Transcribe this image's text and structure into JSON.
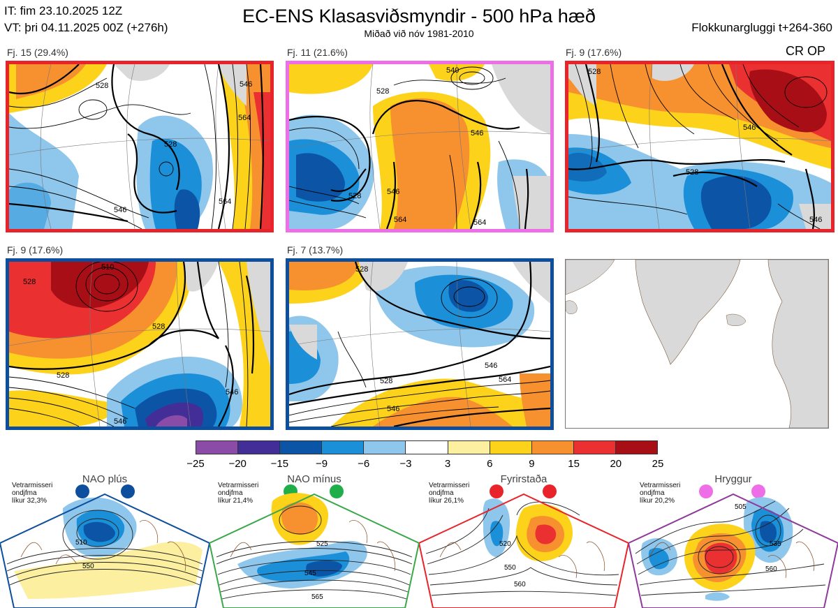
{
  "header": {
    "init_time": "IT: fim 23.10.2025 12Z",
    "valid_time": "VT: þri 04.11.2025 00Z  (+276h)",
    "title": "EC-ENS Klasasviðsmyndir - 500 hPa hæð",
    "subtitle": "Miðað við nóv 1981-2010",
    "window": "Flokkunargluggi t+264-360",
    "regime_code": "CR OP"
  },
  "clusters": [
    {
      "label": "Fj. 15 (29.4%)",
      "frame_color": "#e8242a",
      "contours": [
        "528",
        "528",
        "546",
        "564",
        "546",
        "564"
      ]
    },
    {
      "label": "Fj. 11 (21.6%)",
      "frame_color": "#ee6ee8",
      "contours": [
        "540",
        "528",
        "546",
        "528",
        "546",
        "564",
        "564"
      ]
    },
    {
      "label": "Fj. 9 (17.6%)",
      "frame_color": "#e8242a",
      "contours": [
        "528",
        "546",
        "546",
        "528"
      ]
    },
    {
      "label": "Fj. 9 (17.6%)",
      "frame_color": "#0d4f9c",
      "contours": [
        "510",
        "528",
        "528",
        "528",
        "546",
        "546"
      ]
    },
    {
      "label": "Fj. 7 (13.7%)",
      "frame_color": "#0d4f9c",
      "contours": [
        "528",
        "546",
        "528",
        "546",
        "564"
      ]
    }
  ],
  "colorbar": {
    "ticks": [
      "−25",
      "−20",
      "−15",
      "−9",
      "−6",
      "−3",
      "3",
      "6",
      "9",
      "15",
      "20",
      "25"
    ],
    "colors": [
      "#8a4ca6",
      "#432e98",
      "#0c55a6",
      "#1b8fd7",
      "#8ec6ec",
      "#ffffff",
      "#fcf0a0",
      "#fcd21a",
      "#f7902f",
      "#ea3030",
      "#a80e16"
    ]
  },
  "regimes": [
    {
      "name": "NAO plús",
      "season": "Vetrarmisseri",
      "type": "ondjfma",
      "prob": "líkur 32,3%",
      "color": "#0d4f9c",
      "dot": "#0d4f9c",
      "contours": [
        "510",
        "550"
      ]
    },
    {
      "name": "NAO mínus",
      "season": "Vetrarmisseri",
      "type": "ondjfma",
      "prob": "líkur 21,4%",
      "color": "#3aa84a",
      "dot": "#1fae4a",
      "contours": [
        "525",
        "545",
        "565"
      ]
    },
    {
      "name": "Fyrirstaða",
      "season": "Vetrarmisseri",
      "type": "ondjfma",
      "prob": "líkur 26,1%",
      "color": "#e8242a",
      "dot": "#e8242a",
      "contours": [
        "520",
        "550",
        "560"
      ]
    },
    {
      "name": "Hryggur",
      "season": "Vetrarmisseri",
      "type": "ondjfma",
      "prob": "líkur 20,2%",
      "color": "#8e3a9a",
      "dot": "#ee6ee8",
      "contours": [
        "505",
        "535",
        "560"
      ]
    }
  ]
}
